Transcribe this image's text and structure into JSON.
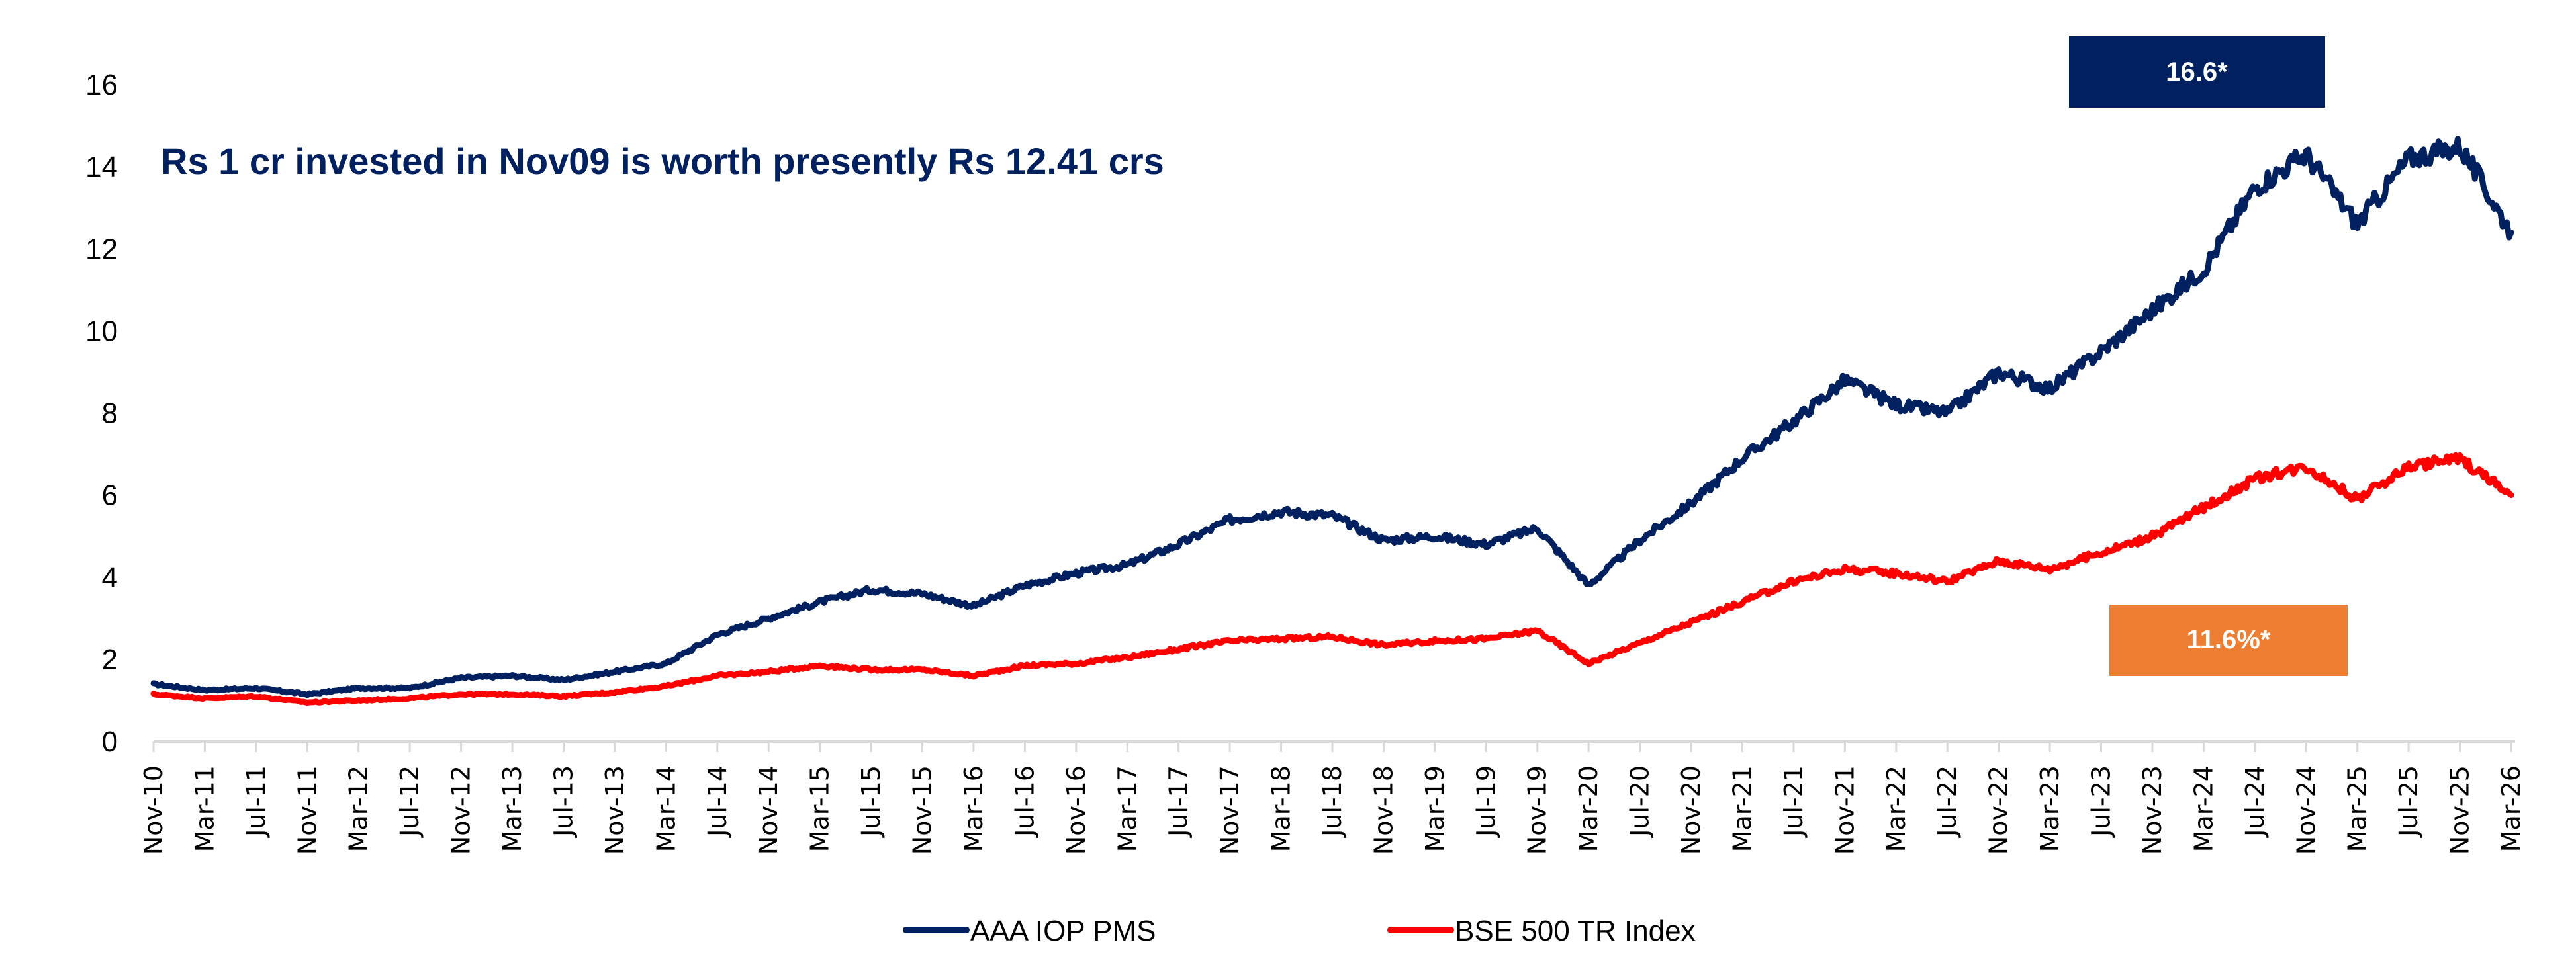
{
  "chart_data": {
    "type": "line",
    "title": "Rs 1 cr invested in Nov09 is worth presently Rs 12.41 crs",
    "xlabel": "",
    "ylabel": "",
    "ylim": [
      0,
      16
    ],
    "yticks": [
      "0",
      "2",
      "4",
      "6",
      "8",
      "10",
      "12",
      "14",
      "16"
    ],
    "grid": false,
    "legend_position": "bottom-center",
    "x": [
      "Nov-10",
      "Mar-11",
      "Jul-11",
      "Nov-11",
      "Mar-12",
      "Jul-12",
      "Nov-12",
      "Mar-13",
      "Jul-13",
      "Nov-13",
      "Mar-14",
      "Jul-14",
      "Nov-14",
      "Mar-15",
      "Jul-15",
      "Nov-15",
      "Mar-16",
      "Jul-16",
      "Nov-16",
      "Mar-17",
      "Jul-17",
      "Nov-17",
      "Mar-18",
      "Jul-18",
      "Nov-18",
      "Mar-19",
      "Jul-19",
      "Nov-19",
      "Mar-20",
      "Jul-20",
      "Nov-20",
      "Mar-21",
      "Jul-21",
      "Nov-21",
      "Mar-22",
      "Jul-22",
      "Nov-22",
      "Mar-23",
      "Jul-23",
      "Nov-23",
      "Mar-24",
      "Jul-24",
      "Nov-24",
      "Mar-25",
      "Jul-25",
      "Nov-25",
      "Mar-26"
    ],
    "series": [
      {
        "name": "AAA IOP PMS",
        "color": "#002060",
        "values": [
          1.4,
          1.25,
          1.3,
          1.15,
          1.3,
          1.3,
          1.55,
          1.6,
          1.5,
          1.7,
          1.9,
          2.6,
          3.0,
          3.4,
          3.7,
          3.6,
          3.3,
          3.8,
          4.1,
          4.3,
          4.8,
          5.4,
          5.6,
          5.5,
          4.9,
          5.0,
          4.8,
          5.2,
          3.8,
          4.9,
          5.8,
          6.9,
          7.8,
          8.8,
          8.2,
          8.0,
          9.0,
          8.6,
          9.5,
          10.5,
          11.5,
          13.5,
          14.3,
          12.6,
          14.2,
          14.5,
          12.4
        ]
      },
      {
        "name": "BSE 500 TR Index",
        "color": "#ff0000",
        "values": [
          1.15,
          1.05,
          1.1,
          0.95,
          1.0,
          1.05,
          1.15,
          1.15,
          1.1,
          1.2,
          1.35,
          1.6,
          1.7,
          1.85,
          1.75,
          1.75,
          1.6,
          1.85,
          1.9,
          2.05,
          2.25,
          2.45,
          2.5,
          2.55,
          2.35,
          2.45,
          2.5,
          2.7,
          1.9,
          2.4,
          2.9,
          3.4,
          3.9,
          4.2,
          4.1,
          3.9,
          4.4,
          4.2,
          4.6,
          5.0,
          5.7,
          6.4,
          6.7,
          5.9,
          6.7,
          6.9,
          6.0
        ]
      }
    ],
    "annotations": [
      {
        "name": "aaa-cagr",
        "text": "16.6*",
        "color": "#002060"
      },
      {
        "name": "bse-cagr",
        "text": "11.6%*",
        "color": "#ed7d31"
      }
    ]
  }
}
